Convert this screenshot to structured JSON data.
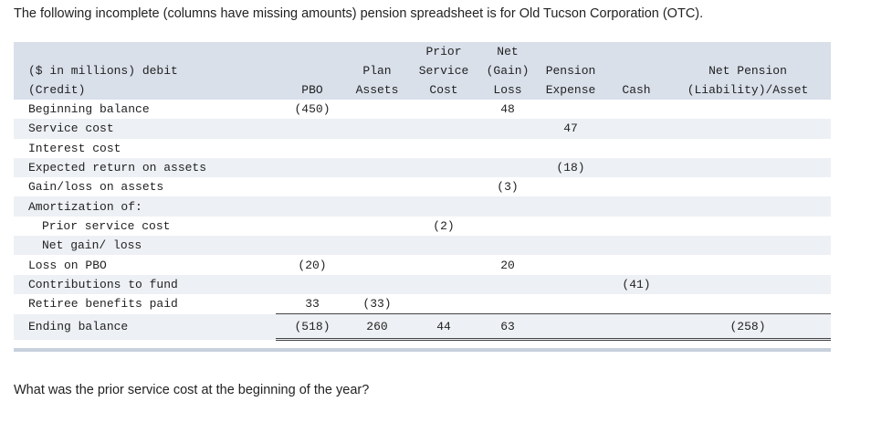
{
  "intro": "The following incomplete (columns have missing amounts) pension spreadsheet is for Old Tucson Corporation (OTC).",
  "question": "What was the prior service cost at the beginning of the year?",
  "header": {
    "row1": {
      "prior": "Prior",
      "net": "Net"
    },
    "row2": {
      "label": "($ in millions) debit",
      "plan": "Plan",
      "prior": "Service",
      "net": "(Gain)",
      "expense": "Pension",
      "npl": "Net Pension"
    },
    "row3": {
      "label": "(Credit)",
      "pbo": "PBO",
      "plan": "Assets",
      "prior": "Cost",
      "net": "Loss",
      "expense": "Expense",
      "cash": "Cash",
      "npl": "(Liability)/Asset"
    }
  },
  "rows": [
    {
      "label": "Beginning balance",
      "pbo": "(450)",
      "plan": "",
      "prior": "",
      "net": "48",
      "expense": "",
      "cash": "",
      "npl": ""
    },
    {
      "label": "Service cost",
      "pbo": "",
      "plan": "",
      "prior": "",
      "net": "",
      "expense": "47",
      "cash": "",
      "npl": ""
    },
    {
      "label": "Interest cost",
      "pbo": "",
      "plan": "",
      "prior": "",
      "net": "",
      "expense": "",
      "cash": "",
      "npl": ""
    },
    {
      "label": "Expected return on assets",
      "pbo": "",
      "plan": "",
      "prior": "",
      "net": "",
      "expense": "(18)",
      "cash": "",
      "npl": ""
    },
    {
      "label": "Gain/loss on assets",
      "pbo": "",
      "plan": "",
      "prior": "",
      "net": "(3)",
      "expense": "",
      "cash": "",
      "npl": ""
    },
    {
      "label": "Amortization of:",
      "pbo": "",
      "plan": "",
      "prior": "",
      "net": "",
      "expense": "",
      "cash": "",
      "npl": ""
    },
    {
      "label": "Prior service cost",
      "pbo": "",
      "plan": "",
      "prior": "(2)",
      "net": "",
      "expense": "",
      "cash": "",
      "npl": ""
    },
    {
      "label": "Net gain/ loss",
      "pbo": "",
      "plan": "",
      "prior": "",
      "net": "",
      "expense": "",
      "cash": "",
      "npl": ""
    },
    {
      "label": "Loss on PBO",
      "pbo": "(20)",
      "plan": "",
      "prior": "",
      "net": "20",
      "expense": "",
      "cash": "",
      "npl": ""
    },
    {
      "label": "Contributions to fund",
      "pbo": "",
      "plan": "",
      "prior": "",
      "net": "",
      "expense": "",
      "cash": "(41)",
      "npl": ""
    },
    {
      "label": "Retiree benefits paid",
      "pbo": "33",
      "plan": "(33)",
      "prior": "",
      "net": "",
      "expense": "",
      "cash": "",
      "npl": ""
    },
    {
      "label": "Ending balance",
      "pbo": "(518)",
      "plan": "260",
      "prior": "44",
      "net": "63",
      "expense": "",
      "cash": "",
      "npl": "(258)"
    }
  ]
}
